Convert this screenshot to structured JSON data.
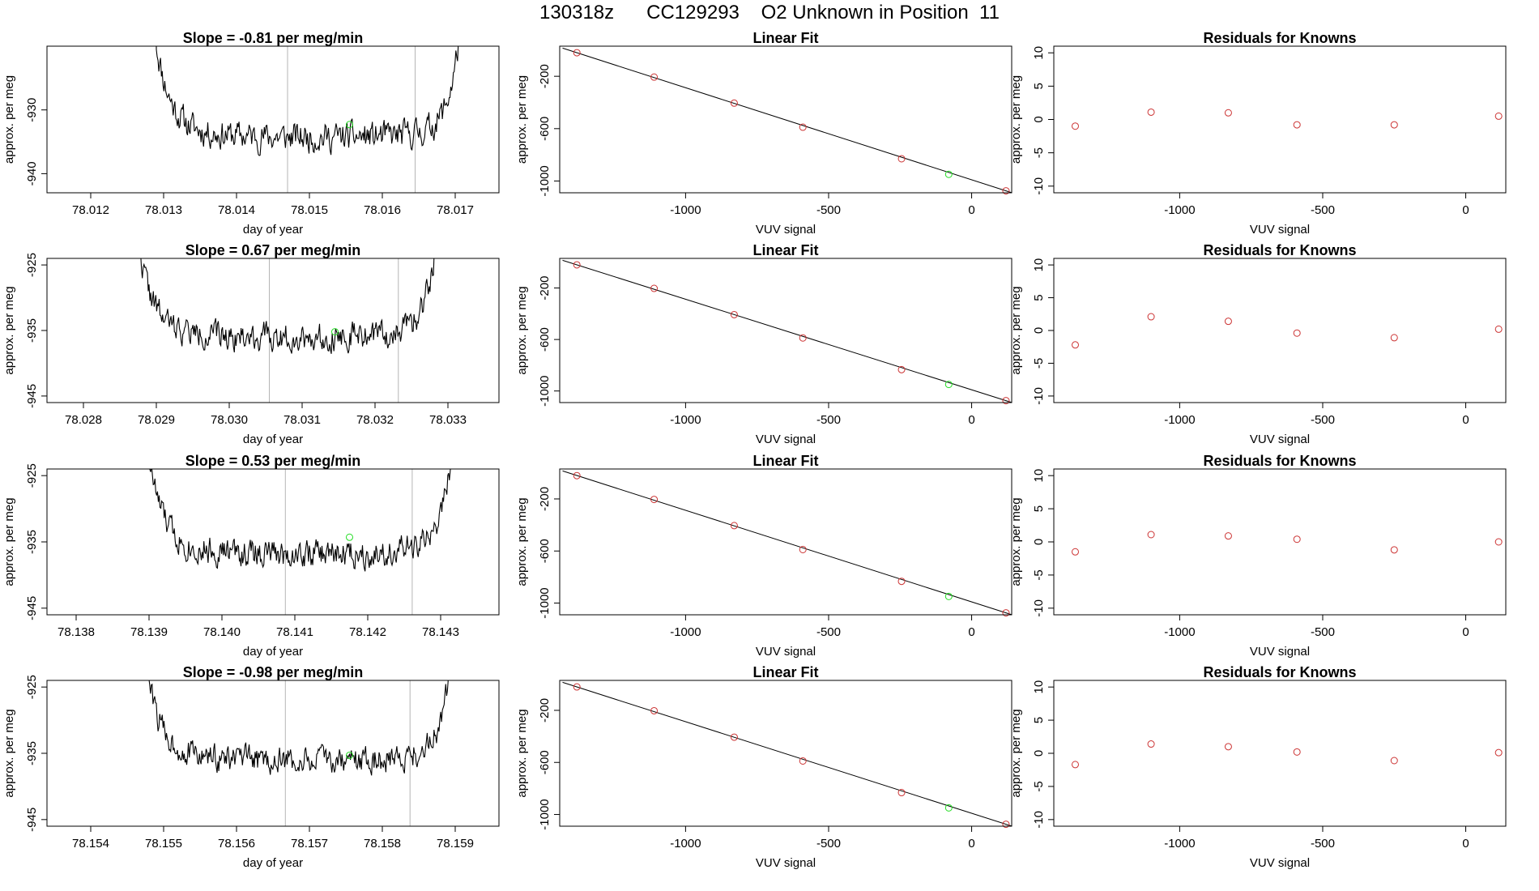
{
  "suptitle": "130318z      CC129293    O2 Unknown in Position  11",
  "colors": {
    "known": "#cc3333",
    "unknown": "#22dd22",
    "line": "#000000",
    "vline": "#b5b5b5"
  },
  "chart_data": [
    {
      "row": 1,
      "trace": {
        "type": "line",
        "title": "Slope =  -0.81  per meg/min",
        "xlabel": "day of year",
        "ylabel": "approx. per meg",
        "xlim": [
          78.0114,
          78.0176
        ],
        "ylim": [
          -943,
          -920
        ],
        "xticks": [
          "78.012",
          "78.013",
          "78.014",
          "78.015",
          "78.016",
          "78.017"
        ],
        "yticks": [
          "-930",
          "-940"
        ],
        "start": 78.0129,
        "end": 78.0172,
        "step_sec": 1,
        "window": [
          78.0147,
          78.01645
        ],
        "baseline": -933.5,
        "noise": 2.2,
        "seed": 11,
        "unknown_point": [
          78.01555,
          -932.3
        ]
      },
      "fit": {
        "type": "line",
        "title": "Linear Fit",
        "xlabel": "VUV signal",
        "ylabel": "approx. per meg",
        "xlim": [
          -1440,
          140
        ],
        "ylim": [
          -1090,
          30
        ],
        "xticks": [
          "-1000",
          "-500",
          "0"
        ],
        "yticks": [
          "-200",
          "-600",
          "-1000"
        ],
        "line": [
          [
            -1380,
            -20
          ],
          [
            120,
            -1075
          ]
        ],
        "knowns_x": [
          -1380,
          -1110,
          -830,
          -590,
          -245,
          120
        ],
        "knowns_y": [
          -20,
          -206,
          -405,
          -589,
          -830,
          -1075
        ],
        "unknown": [
          -80,
          -949
        ]
      },
      "residuals": {
        "type": "scatter",
        "title": "Residuals for Knowns",
        "xlabel": "VUV signal",
        "ylabel": "approx. per meg",
        "xlim": [
          -1440,
          140
        ],
        "ylim": [
          -11,
          11
        ],
        "xticks": [
          "-1000",
          "-500",
          "0"
        ],
        "yticks": [
          "10",
          "5",
          "0",
          "-5",
          "-10"
        ],
        "x": [
          -1365,
          -1100,
          -830,
          -590,
          -250,
          115
        ],
        "y": [
          -1.0,
          1.1,
          1.0,
          -0.8,
          -0.8,
          0.5
        ]
      }
    },
    {
      "row": 2,
      "trace": {
        "type": "line",
        "title": "Slope =  0.67  per meg/min",
        "xlabel": "day of year",
        "ylabel": "approx. per meg",
        "xlim": [
          78.0275,
          78.0337
        ],
        "ylim": [
          -946,
          -924
        ],
        "xticks": [
          "78.028",
          "78.029",
          "78.030",
          "78.031",
          "78.032",
          "78.033"
        ],
        "yticks": [
          "-925",
          "-935",
          "-945"
        ],
        "start": 78.02875,
        "end": 78.033,
        "step_sec": 1,
        "window": [
          78.03055,
          78.03232
        ],
        "baseline": -935.2,
        "noise": 2.0,
        "seed": 22,
        "unknown_point": [
          78.03145,
          -935.2
        ]
      },
      "fit": {
        "type": "line",
        "title": "Linear Fit",
        "xlabel": "VUV signal",
        "ylabel": "approx. per meg",
        "xlim": [
          -1440,
          140
        ],
        "ylim": [
          -1090,
          30
        ],
        "xticks": [
          "-1000",
          "-500",
          "0"
        ],
        "yticks": [
          "-200",
          "-600",
          "-1000"
        ],
        "line": [
          [
            -1380,
            -20
          ],
          [
            120,
            -1075
          ]
        ],
        "knowns_x": [
          -1380,
          -1110,
          -830,
          -590,
          -245,
          120
        ],
        "knowns_y": [
          -20,
          -203,
          -407,
          -588,
          -834,
          -1075
        ],
        "unknown": [
          -80,
          -949
        ]
      },
      "residuals": {
        "type": "scatter",
        "title": "Residuals for Knowns",
        "xlabel": "VUV signal",
        "ylabel": "approx. per meg",
        "xlim": [
          -1440,
          140
        ],
        "ylim": [
          -11,
          11
        ],
        "xticks": [
          "-1000",
          "-500",
          "0"
        ],
        "yticks": [
          "10",
          "5",
          "0",
          "-5",
          "-10"
        ],
        "x": [
          -1365,
          -1100,
          -830,
          -590,
          -250,
          115
        ],
        "y": [
          -2.2,
          2.1,
          1.4,
          -0.4,
          -1.1,
          0.2
        ]
      }
    },
    {
      "row": 3,
      "trace": {
        "type": "line",
        "title": "Slope =  0.53  per meg/min",
        "xlabel": "day of year",
        "ylabel": "approx. per meg",
        "xlim": [
          78.1376,
          78.1438
        ],
        "ylim": [
          -946,
          -924
        ],
        "xticks": [
          "78.138",
          "78.139",
          "78.140",
          "78.141",
          "78.142",
          "78.143"
        ],
        "yticks": [
          "-925",
          "-935",
          "-945"
        ],
        "start": 78.139,
        "end": 78.1433,
        "step_sec": 1,
        "window": [
          78.14087,
          78.14261
        ],
        "baseline": -936.0,
        "noise": 2.1,
        "seed": 33,
        "unknown_point": [
          78.14175,
          -934.3
        ]
      },
      "fit": {
        "type": "line",
        "title": "Linear Fit",
        "xlabel": "VUV signal",
        "ylabel": "approx. per meg",
        "xlim": [
          -1440,
          140
        ],
        "ylim": [
          -1090,
          30
        ],
        "xticks": [
          "-1000",
          "-500",
          "0"
        ],
        "yticks": [
          "-200",
          "-600",
          "-1000"
        ],
        "line": [
          [
            -1380,
            -20
          ],
          [
            120,
            -1075
          ]
        ],
        "knowns_x": [
          -1380,
          -1110,
          -830,
          -590,
          -245,
          120
        ],
        "knowns_y": [
          -21,
          -204,
          -405,
          -589,
          -833,
          -1075
        ],
        "unknown": [
          -80,
          -949
        ]
      },
      "residuals": {
        "type": "scatter",
        "title": "Residuals for Knowns",
        "xlabel": "VUV signal",
        "ylabel": "approx. per meg",
        "xlim": [
          -1440,
          140
        ],
        "ylim": [
          -11,
          11
        ],
        "xticks": [
          "-1000",
          "-500",
          "0"
        ],
        "yticks": [
          "10",
          "5",
          "0",
          "-5",
          "-10"
        ],
        "x": [
          -1365,
          -1100,
          -830,
          -590,
          -250,
          115
        ],
        "y": [
          -1.5,
          1.1,
          0.9,
          0.4,
          -1.2,
          0.0
        ]
      }
    },
    {
      "row": 4,
      "trace": {
        "type": "line",
        "title": "Slope =  -0.98  per meg/min",
        "xlabel": "day of year",
        "ylabel": "approx. per meg",
        "xlim": [
          78.1534,
          78.1596
        ],
        "ylim": [
          -946,
          -924
        ],
        "xticks": [
          "78.154",
          "78.155",
          "78.156",
          "78.157",
          "78.158",
          "78.159"
        ],
        "yticks": [
          "-925",
          "-935",
          "-945"
        ],
        "start": 78.15475,
        "end": 78.1591,
        "step_sec": 1,
        "window": [
          78.15667,
          78.15838
        ],
        "baseline": -935.3,
        "noise": 2.0,
        "seed": 44,
        "unknown_point": [
          78.15755,
          -935.3
        ]
      },
      "fit": {
        "type": "line",
        "title": "Linear Fit",
        "xlabel": "VUV signal",
        "ylabel": "approx. per meg",
        "xlim": [
          -1440,
          140
        ],
        "ylim": [
          -1090,
          30
        ],
        "xticks": [
          "-1000",
          "-500",
          "0"
        ],
        "yticks": [
          "-200",
          "-600",
          "-1000"
        ],
        "line": [
          [
            -1380,
            -20
          ],
          [
            120,
            -1075
          ]
        ],
        "knowns_x": [
          -1380,
          -1110,
          -830,
          -590,
          -245,
          120
        ],
        "knowns_y": [
          -20,
          -203,
          -406,
          -589,
          -832,
          -1075
        ],
        "unknown": [
          -80,
          -949
        ]
      },
      "residuals": {
        "type": "scatter",
        "title": "Residuals for Knowns",
        "xlabel": "VUV signal",
        "ylabel": "approx. per meg",
        "xlim": [
          -1440,
          140
        ],
        "ylim": [
          -11,
          11
        ],
        "xticks": [
          "-1000",
          "-500",
          "0"
        ],
        "yticks": [
          "10",
          "5",
          "0",
          "-5",
          "-10"
        ],
        "x": [
          -1365,
          -1100,
          -830,
          -590,
          -250,
          115
        ],
        "y": [
          -1.7,
          1.4,
          1.0,
          0.2,
          -1.1,
          0.1
        ]
      }
    }
  ]
}
